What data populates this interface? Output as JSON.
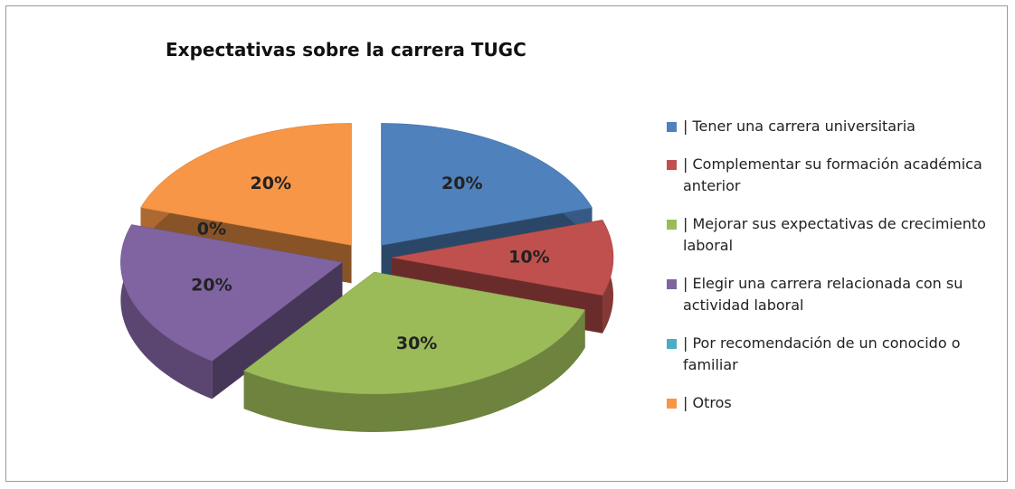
{
  "chart_data": {
    "type": "pie",
    "title": "Expectativas sobre la carrera TUGC",
    "categories": [
      "| Tener una carrera universitaria",
      "| Complementar su formación académica anterior",
      "| Mejorar sus expectativas de crecimiento laboral",
      "| Elegir una carrera relacionada con su actividad laboral",
      "| Por recomendación de un conocido o familiar",
      "| Otros"
    ],
    "values": [
      20,
      10,
      30,
      20,
      0,
      20
    ],
    "value_labels": [
      "20%",
      "10%",
      "30%",
      "20%",
      "0%",
      "20%"
    ],
    "colors": [
      "#4f81bd",
      "#c0504d",
      "#9bbb59",
      "#8064a2",
      "#4bacc6",
      "#f79646"
    ],
    "legend": "right"
  }
}
